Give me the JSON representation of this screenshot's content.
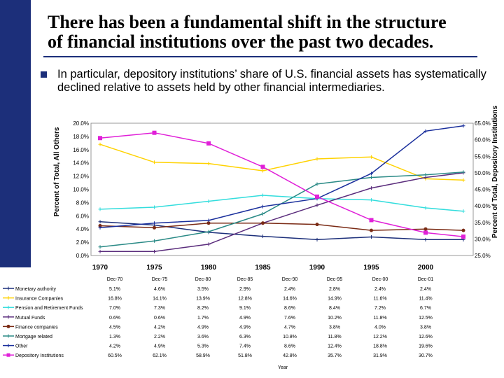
{
  "slide": {
    "title_line1": "There has been a fundamental shift in the structure",
    "title_line2": "of financial institutions over the past two decades.",
    "bullet_marker": "n",
    "bullet_text": "In particular, depository institutions’ share of U.S. financial assets has systematically declined relative to assets held by other financial intermediaries."
  },
  "chart_data": {
    "type": "line",
    "title": "",
    "xlabel": "Year",
    "ylabel_left": "Percent of Total, All Others",
    "ylabel_right": "Percent of Total, Depository Institutions",
    "left_ylim": [
      0,
      20
    ],
    "right_ylim": [
      25,
      65
    ],
    "left_ticks": [
      "0.0%",
      "2.0%",
      "4.0%",
      "6.0%",
      "8.0%",
      "10.0%",
      "12.0%",
      "14.0%",
      "16.0%",
      "18.0%",
      "20.0%"
    ],
    "right_ticks": [
      "25.0%",
      "30.0%",
      "35.0%",
      "40.0%",
      "45.0%",
      "50.0%",
      "55.0%",
      "60.0%",
      "65.0%"
    ],
    "year_labels": [
      "1970",
      "1975",
      "1980",
      "1985",
      "1990",
      "1995",
      "2000"
    ],
    "categories": [
      "Dec-70",
      "Dec-75",
      "Dec-80",
      "Dec-85",
      "Dec-90",
      "Dec-95",
      "Dec-00",
      "Dec-01"
    ],
    "series": [
      {
        "name": "Monetary authority",
        "axis": "left",
        "color": "#1c2f7a",
        "values": [
          5.1,
          4.6,
          3.5,
          2.9,
          2.4,
          2.8,
          2.4,
          2.4
        ],
        "labels": [
          "5.1%",
          "4.6%",
          "3.5%",
          "2.9%",
          "2.4%",
          "2.8%",
          "2.4%",
          "2.4%"
        ]
      },
      {
        "name": "Insurance Companies",
        "axis": "left",
        "color": "#ffd200",
        "values": [
          16.8,
          14.1,
          13.9,
          12.8,
          14.6,
          14.9,
          11.6,
          11.4
        ],
        "labels": [
          "16.8%",
          "14.1%",
          "13.9%",
          "12.8%",
          "14.6%",
          "14.9%",
          "11.6%",
          "11.4%"
        ]
      },
      {
        "name": "Pension and Retirement Funds",
        "axis": "left",
        "color": "#33dddd",
        "values": [
          7.0,
          7.3,
          8.2,
          9.1,
          8.6,
          8.4,
          7.2,
          6.7
        ],
        "labels": [
          "7.0%",
          "7.3%",
          "8.2%",
          "9.1%",
          "8.6%",
          "8.4%",
          "7.2%",
          "6.7%"
        ]
      },
      {
        "name": "Mutual Funds",
        "axis": "left",
        "color": "#5a2c7c",
        "values": [
          0.6,
          0.6,
          1.7,
          4.9,
          7.6,
          10.2,
          11.8,
          12.5
        ],
        "labels": [
          "0.6%",
          "0.6%",
          "1.7%",
          "4.9%",
          "7.6%",
          "10.2%",
          "11.8%",
          "12.5%"
        ]
      },
      {
        "name": "Finance companies",
        "axis": "left",
        "color": "#7a2a14",
        "values": [
          4.5,
          4.2,
          4.9,
          4.9,
          4.7,
          3.8,
          4.0,
          3.8
        ],
        "labels": [
          "4.5%",
          "4.2%",
          "4.9%",
          "4.9%",
          "4.7%",
          "3.8%",
          "4.0%",
          "3.8%"
        ]
      },
      {
        "name": "Mortgage related",
        "axis": "left",
        "color": "#2a8a86",
        "values": [
          1.3,
          2.2,
          3.6,
          6.3,
          10.8,
          11.8,
          12.2,
          12.6
        ],
        "labels": [
          "1.3%",
          "2.2%",
          "3.6%",
          "6.3%",
          "10.8%",
          "11.8%",
          "12.2%",
          "12.6%"
        ]
      },
      {
        "name": "Other",
        "axis": "left",
        "color": "#1a2f9c",
        "values": [
          4.2,
          4.9,
          5.3,
          7.4,
          8.6,
          12.4,
          18.8,
          19.6
        ],
        "labels": [
          "4.2%",
          "4.9%",
          "5.3%",
          "7.4%",
          "8.6%",
          "12.4%",
          "18.8%",
          "19.6%"
        ]
      },
      {
        "name": "Depository Institutions",
        "axis": "right",
        "color": "#e020d8",
        "values": [
          60.5,
          62.1,
          58.9,
          51.8,
          42.8,
          35.7,
          31.9,
          30.7
        ],
        "labels": [
          "60.5%",
          "62.1%",
          "58.9%",
          "51.8%",
          "42.8%",
          "35.7%",
          "31.9%",
          "30.7%"
        ]
      }
    ]
  }
}
